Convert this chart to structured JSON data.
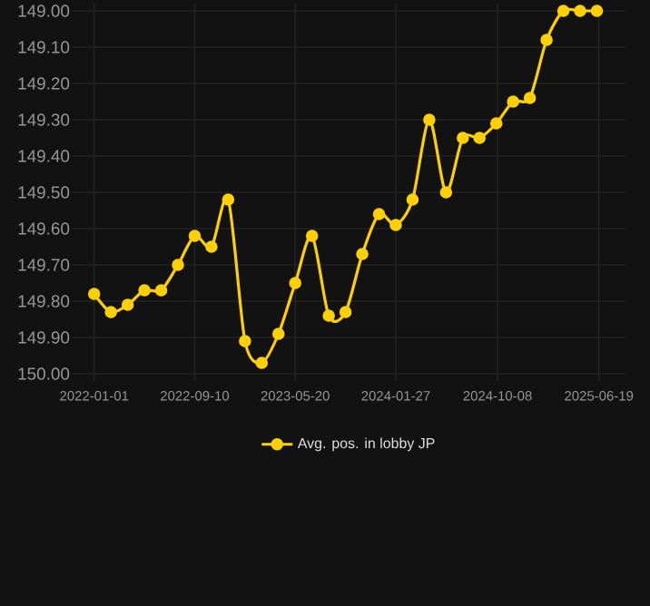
{
  "chart_data": {
    "type": "line",
    "x": [
      "2022-01-01",
      "2022-02-12",
      "2022-03-26",
      "2022-05-07",
      "2022-06-18",
      "2022-07-30",
      "2022-09-10",
      "2022-10-22",
      "2022-12-03",
      "2023-01-14",
      "2023-02-25",
      "2023-04-08",
      "2023-05-20",
      "2023-07-01",
      "2023-08-12",
      "2023-09-23",
      "2023-11-04",
      "2023-12-16",
      "2024-01-27",
      "2024-03-09",
      "2024-04-20",
      "2024-06-01",
      "2024-07-13",
      "2024-08-24",
      "2024-10-05",
      "2024-11-16",
      "2024-12-28",
      "2025-02-08",
      "2025-03-22",
      "2025-05-03",
      "2025-06-14"
    ],
    "series": [
      {
        "name": "Avg. pos. in lobby JP",
        "color": "#ffd000",
        "values": [
          149.78,
          149.83,
          149.81,
          149.77,
          149.77,
          149.7,
          149.62,
          149.65,
          149.52,
          149.91,
          149.97,
          149.89,
          149.75,
          149.62,
          149.84,
          149.83,
          149.67,
          149.56,
          149.59,
          149.52,
          149.3,
          149.5,
          149.35,
          149.35,
          149.31,
          149.25,
          149.24,
          149.08,
          149.0,
          149.0,
          149.0
        ]
      }
    ],
    "xlim": [
      "2021-11-08",
      "2025-08-27"
    ],
    "ylim": [
      150.02,
      148.98
    ],
    "xticks": [
      "2022-01-01",
      "2022-09-10",
      "2023-05-20",
      "2024-01-27",
      "2024-10-08",
      "2025-06-19"
    ],
    "yticks": [
      {
        "value": 149.0,
        "label": "149.00"
      },
      {
        "value": 149.1,
        "label": "149.10"
      },
      {
        "value": 149.2,
        "label": "149.20"
      },
      {
        "value": 149.3,
        "label": "149.30"
      },
      {
        "value": 149.4,
        "label": "149.40"
      },
      {
        "value": 149.5,
        "label": "149.50"
      },
      {
        "value": 149.6,
        "label": "149.60"
      },
      {
        "value": 149.7,
        "label": "149.70"
      },
      {
        "value": 149.8,
        "label": "149.80"
      },
      {
        "value": 149.9,
        "label": "149.90"
      },
      {
        "value": 150.0,
        "label": "150.00"
      }
    ],
    "grid": true,
    "legend": "bottom",
    "marker": "circle",
    "line_style": "solid"
  }
}
